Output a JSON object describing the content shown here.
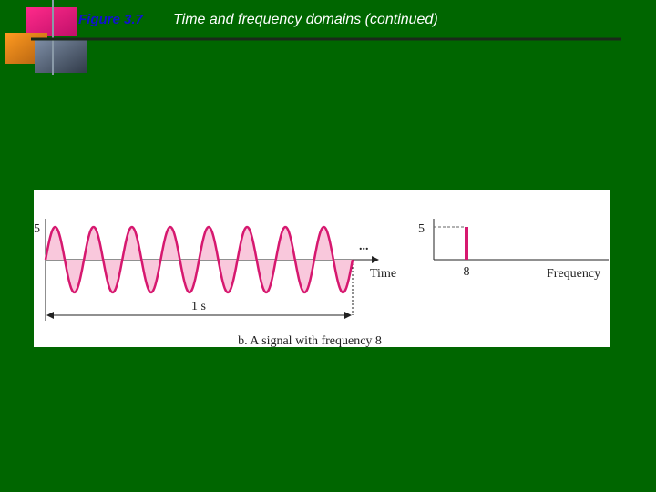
{
  "header": {
    "figure_label": "Figure 3.7",
    "title": "Time and frequency domains (continued)"
  },
  "figure": {
    "time_domain": {
      "amplitude": 5,
      "x_label": "Time",
      "period_label": "1 s",
      "ellipsis": "..."
    },
    "frequency_domain": {
      "amplitude": 5,
      "frequency": 8,
      "x_label": "Frequency"
    },
    "caption": "b. A signal with frequency 8"
  }
}
